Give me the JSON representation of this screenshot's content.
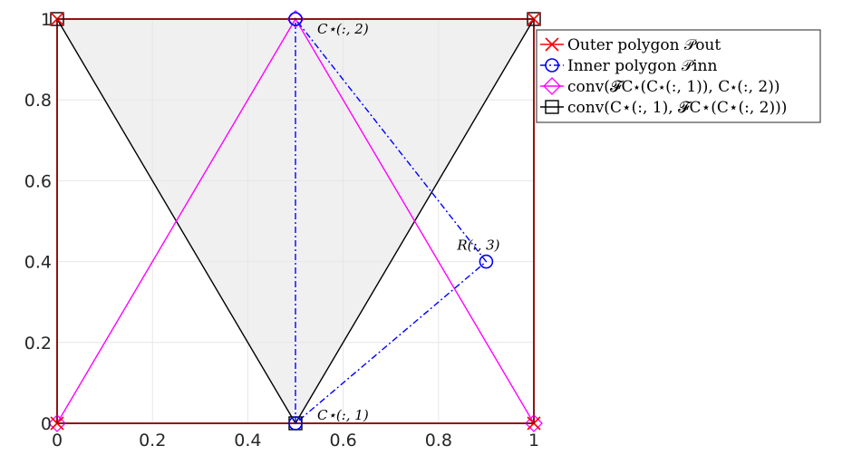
{
  "chart_data": {
    "type": "line",
    "xlim": [
      0,
      1
    ],
    "ylim": [
      0,
      1
    ],
    "xticks": [
      "0",
      "0.2",
      "0.4",
      "0.6",
      "0.8",
      "1"
    ],
    "yticks": [
      "0",
      "0.2",
      "0.4",
      "0.6",
      "0.8",
      "1"
    ],
    "grid": true,
    "legend_position": "outside right, top",
    "shaded_region": {
      "color": "#f0f0f0",
      "polygon": [
        [
          0,
          1
        ],
        [
          0.5,
          0
        ],
        [
          1,
          1
        ]
      ]
    },
    "series": [
      {
        "name": "Outer polygon 𝒫out",
        "color": "#ff0000",
        "marker": "x",
        "linestyle": "solid",
        "x": [
          0,
          0,
          1,
          1,
          0
        ],
        "y": [
          0,
          1,
          1,
          0,
          0
        ]
      },
      {
        "name": "Inner polygon 𝒫inn",
        "color": "#0000ff",
        "marker": "o",
        "linestyle": "dashdot",
        "x": [
          0.5,
          0.5,
          0.9,
          0.5
        ],
        "y": [
          0,
          1,
          0.4,
          0
        ]
      },
      {
        "name": "conv(𝓕C⋆(C⋆(:, 1)), C⋆(:, 2))",
        "color": "#ff00ff",
        "marker": "diamond",
        "linestyle": "solid",
        "x": [
          0,
          0.5,
          1,
          0
        ],
        "y": [
          0,
          1,
          0,
          0
        ]
      },
      {
        "name": "conv(C⋆(:, 1), 𝓕C⋆(C⋆(:, 2)))",
        "color": "#000000",
        "marker": "square",
        "linestyle": "solid",
        "x": [
          0,
          0.5,
          1
        ],
        "y": [
          1,
          0,
          1
        ]
      }
    ],
    "annotations": [
      {
        "text": "C⋆(:, 2)",
        "x": 0.5,
        "y": 1
      },
      {
        "text": "R(:, 3)",
        "x": 0.9,
        "y": 0.4
      },
      {
        "text": "C⋆(:, 1)",
        "x": 0.5,
        "y": 0
      }
    ]
  }
}
